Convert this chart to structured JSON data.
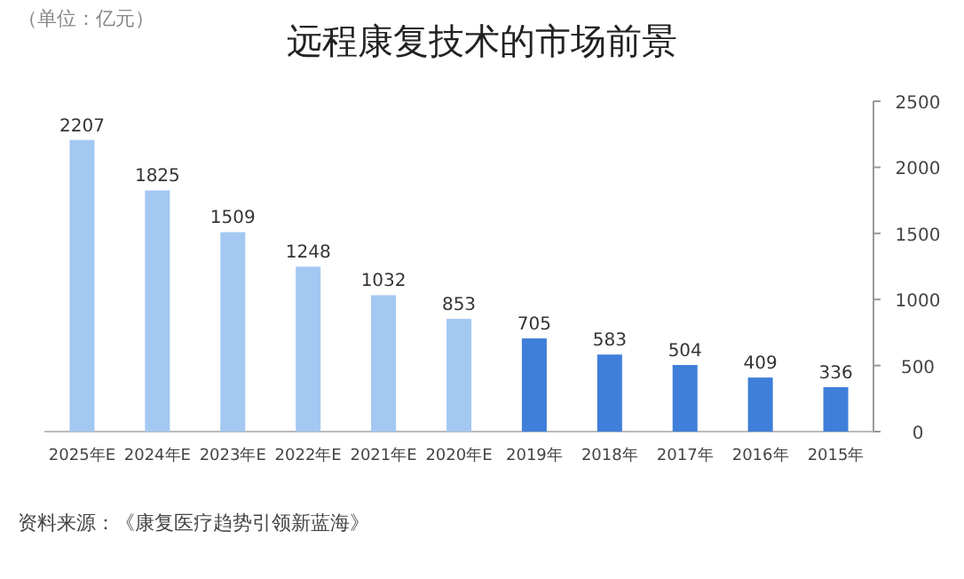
{
  "chart_data": {
    "type": "bar",
    "title": "远程康复技术的市场前景",
    "subtitle": "（单位：亿元）",
    "categories": [
      "2025年E",
      "2024年E",
      "2023年E",
      "2022年E",
      "2021年E",
      "2020年E",
      "2019年",
      "2018年",
      "2017年",
      "2016年",
      "2015年"
    ],
    "values": [
      2207,
      1825,
      1509,
      1248,
      1032,
      853,
      705,
      583,
      504,
      409,
      336
    ],
    "colors": [
      "#a3c8f2",
      "#a3c8f2",
      "#a3c8f2",
      "#a3c8f2",
      "#a3c8f2",
      "#a3c8f2",
      "#3f7fd9",
      "#3f7fd9",
      "#3f7fd9",
      "#3f7fd9",
      "#3f7fd9"
    ],
    "ylim": [
      0,
      2500
    ],
    "yticks": [
      0,
      500,
      1000,
      1500,
      2000,
      2500
    ],
    "data_labels": true,
    "grid": false,
    "annotations": [
      "资料来源：《康复医疗趋势引领新蓝海》"
    ]
  }
}
